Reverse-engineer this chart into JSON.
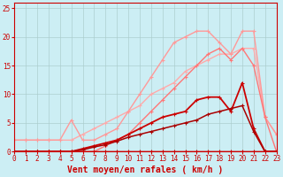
{
  "xlabel": "Vent moyen/en rafales ( km/h )",
  "xlim": [
    0,
    23
  ],
  "ylim": [
    0,
    26
  ],
  "background_color": "#cceef4",
  "grid_color": "#aacccc",
  "lines": [
    {
      "x": [
        0,
        1,
        2,
        3,
        4,
        5,
        6,
        7,
        8,
        9,
        10,
        11,
        12,
        13,
        14,
        15,
        16,
        17,
        18,
        19,
        20,
        21,
        22,
        23
      ],
      "y": [
        2,
        2,
        2,
        2,
        2,
        2,
        3,
        4,
        5,
        6,
        7,
        8,
        10,
        11,
        12,
        14,
        15,
        16,
        17,
        17,
        18,
        18,
        6,
        3
      ],
      "color": "#ffaaaa",
      "lw": 1.0,
      "marker": "+"
    },
    {
      "x": [
        0,
        1,
        2,
        3,
        4,
        5,
        6,
        7,
        8,
        9,
        10,
        11,
        12,
        13,
        14,
        15,
        16,
        17,
        18,
        19,
        20,
        21,
        22,
        23
      ],
      "y": [
        2,
        2,
        2,
        2,
        2,
        5.5,
        2,
        2,
        3,
        4,
        7,
        10,
        13,
        16,
        19,
        20,
        21,
        21,
        19,
        17,
        21,
        21,
        6,
        3
      ],
      "color": "#ff9999",
      "lw": 1.0,
      "marker": "+"
    },
    {
      "x": [
        0,
        1,
        2,
        3,
        4,
        5,
        6,
        7,
        8,
        9,
        10,
        11,
        12,
        13,
        14,
        15,
        16,
        17,
        18,
        19,
        20,
        21,
        22,
        23
      ],
      "y": [
        0,
        0,
        0,
        0,
        0,
        0,
        0,
        0,
        1,
        2,
        3,
        5,
        7,
        9,
        11,
        13,
        15,
        17,
        18,
        16,
        18,
        15,
        6,
        0
      ],
      "color": "#ff7777",
      "lw": 1.0,
      "marker": "+"
    },
    {
      "x": [
        0,
        1,
        2,
        3,
        4,
        5,
        6,
        7,
        8,
        9,
        10,
        11,
        12,
        13,
        14,
        15,
        16,
        17,
        18,
        19,
        20,
        21,
        22,
        23
      ],
      "y": [
        0,
        0,
        0,
        0,
        0,
        0,
        0.5,
        1,
        1.5,
        2,
        3,
        4,
        5,
        6,
        6.5,
        7,
        9,
        9.5,
        9.5,
        7,
        12,
        4,
        0,
        0
      ],
      "color": "#cc0000",
      "lw": 1.3,
      "marker": "+"
    },
    {
      "x": [
        0,
        1,
        2,
        3,
        4,
        5,
        6,
        7,
        8,
        9,
        10,
        11,
        12,
        13,
        14,
        15,
        16,
        17,
        18,
        19,
        20,
        21,
        22,
        23
      ],
      "y": [
        0,
        0,
        0,
        0,
        0,
        0,
        0.3,
        0.8,
        1.2,
        1.8,
        2.5,
        3,
        3.5,
        4,
        4.5,
        5,
        5.5,
        6.5,
        7,
        7.5,
        8,
        3.5,
        0,
        0
      ],
      "color": "#aa0000",
      "lw": 1.1,
      "marker": "+"
    },
    {
      "x": [
        0,
        1,
        2,
        3,
        4,
        5,
        6,
        7,
        8,
        9,
        10,
        11,
        12,
        13,
        14,
        15,
        16,
        17,
        18,
        19,
        20,
        21,
        22,
        23
      ],
      "y": [
        0,
        0,
        0,
        0,
        0,
        0,
        0,
        0,
        0,
        0,
        0,
        0,
        0,
        0,
        0,
        0,
        0,
        0,
        0,
        0,
        0,
        0,
        0,
        0
      ],
      "color": "#cc0000",
      "lw": 1.0,
      "marker": "+"
    }
  ],
  "xticks": [
    0,
    1,
    2,
    3,
    4,
    5,
    6,
    7,
    8,
    9,
    10,
    11,
    12,
    13,
    14,
    15,
    16,
    17,
    18,
    19,
    20,
    21,
    22,
    23
  ],
  "yticks": [
    0,
    5,
    10,
    15,
    20,
    25
  ],
  "xlabel_color": "#cc0000",
  "tick_color": "#cc0000",
  "axis_color": "#cc0000",
  "xlabel_fontsize": 7,
  "tick_fontsize": 5.5
}
